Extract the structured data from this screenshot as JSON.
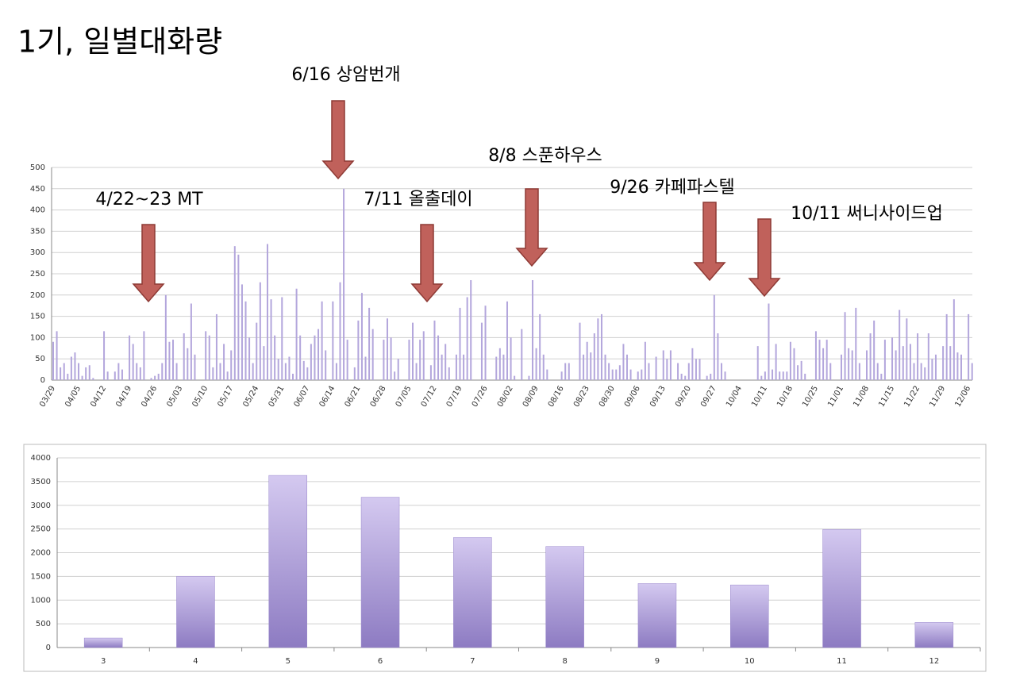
{
  "chart_data": [
    {
      "type": "bar",
      "title": "1기, 일별대화량",
      "color": "#b3a6dc",
      "categories": [
        "03/29",
        null,
        null,
        null,
        null,
        null,
        null,
        "04/05",
        null,
        null,
        null,
        null,
        null,
        null,
        "04/12",
        null,
        null,
        null,
        null,
        null,
        null,
        "04/19",
        null,
        null,
        null,
        null,
        null,
        null,
        "04/26",
        null,
        null,
        null,
        null,
        null,
        null,
        "05/03",
        null,
        null,
        null,
        null,
        null,
        null,
        "05/10",
        null,
        null,
        null,
        null,
        null,
        null,
        "05/17",
        null,
        null,
        null,
        null,
        null,
        null,
        "05/24",
        null,
        null,
        null,
        null,
        null,
        null,
        "05/31",
        null,
        null,
        null,
        null,
        null,
        null,
        "06/07",
        null,
        null,
        null,
        null,
        null,
        null,
        "06/14",
        null,
        null,
        null,
        null,
        null,
        null,
        "06/21",
        null,
        null,
        null,
        null,
        null,
        null,
        "06/28",
        null,
        null,
        null,
        null,
        null,
        null,
        "07/05",
        null,
        null,
        null,
        null,
        null,
        null,
        "07/12",
        null,
        null,
        null,
        null,
        null,
        null,
        "07/19",
        null,
        null,
        null,
        null,
        null,
        null,
        "07/26",
        null,
        null,
        null,
        null,
        null,
        null,
        "08/02",
        null,
        null,
        null,
        null,
        null,
        null,
        "08/09",
        null,
        null,
        null,
        null,
        null,
        null,
        "08/16",
        null,
        null,
        null,
        null,
        null,
        null,
        "08/23",
        null,
        null,
        null,
        null,
        null,
        null,
        "08/30",
        null,
        null,
        null,
        null,
        null,
        null,
        "09/06",
        null,
        null,
        null,
        null,
        null,
        null,
        "09/13",
        null,
        null,
        null,
        null,
        null,
        null,
        "09/20",
        null,
        null,
        null,
        null,
        null,
        null,
        "09/27",
        null,
        null,
        null,
        null,
        null,
        null,
        "10/04",
        null,
        null,
        null,
        null,
        null,
        null,
        "10/11",
        null,
        null,
        null,
        null,
        null,
        null,
        "10/18",
        null,
        null,
        null,
        null,
        null,
        null,
        "10/25",
        null,
        null,
        null,
        null,
        null,
        null,
        "11/01",
        null,
        null,
        null,
        null,
        null,
        null,
        "11/08",
        null,
        null,
        null,
        null,
        null,
        null,
        "11/15",
        null,
        null,
        null,
        null,
        null,
        null,
        "11/22",
        null,
        null,
        null,
        null,
        null,
        null,
        "11/29",
        null,
        null,
        null,
        null,
        null,
        null,
        "12/06",
        null
      ],
      "values": [
        90,
        115,
        30,
        40,
        15,
        55,
        65,
        40,
        10,
        30,
        35,
        5,
        0,
        0,
        115,
        20,
        0,
        20,
        40,
        25,
        0,
        105,
        85,
        40,
        30,
        115,
        0,
        5,
        10,
        15,
        40,
        200,
        90,
        95,
        40,
        0,
        110,
        75,
        180,
        60,
        0,
        0,
        115,
        105,
        30,
        155,
        40,
        85,
        20,
        70,
        315,
        295,
        225,
        185,
        100,
        40,
        135,
        230,
        80,
        320,
        190,
        105,
        50,
        195,
        40,
        55,
        15,
        215,
        105,
        45,
        30,
        85,
        105,
        120,
        185,
        70,
        0,
        185,
        40,
        230,
        450,
        95,
        0,
        30,
        140,
        205,
        55,
        170,
        120,
        0,
        0,
        95,
        145,
        100,
        20,
        50,
        0,
        0,
        95,
        135,
        40,
        95,
        115,
        0,
        35,
        140,
        105,
        60,
        85,
        30,
        0,
        60,
        170,
        60,
        195,
        235,
        0,
        0,
        135,
        175,
        0,
        0,
        55,
        75,
        60,
        185,
        100,
        10,
        0,
        120,
        0,
        10,
        235,
        75,
        155,
        60,
        25,
        0,
        0,
        0,
        20,
        40,
        40,
        0,
        0,
        135,
        60,
        90,
        65,
        110,
        145,
        155,
        60,
        40,
        25,
        25,
        35,
        85,
        60,
        25,
        0,
        20,
        25,
        90,
        40,
        0,
        55,
        0,
        70,
        50,
        70,
        0,
        40,
        15,
        10,
        40,
        75,
        50,
        50,
        0,
        10,
        15,
        200,
        110,
        40,
        20,
        0,
        0,
        0,
        0,
        0,
        0,
        0,
        0,
        80,
        10,
        20,
        180,
        25,
        85,
        20,
        20,
        20,
        90,
        75,
        35,
        45,
        15,
        0,
        0,
        115,
        95,
        75,
        95,
        40,
        0,
        0,
        60,
        160,
        75,
        70,
        170,
        40,
        0,
        70,
        110,
        140,
        40,
        15,
        95,
        0,
        100,
        70,
        165,
        80,
        145,
        85,
        40,
        110,
        40,
        30,
        110,
        50,
        60,
        0,
        80,
        155,
        80,
        190,
        65,
        60,
        0,
        155,
        40
      ],
      "ylim": [
        0,
        500
      ],
      "yticks": [
        0,
        50,
        100,
        150,
        200,
        250,
        300,
        350,
        400,
        450,
        500
      ],
      "grid": true,
      "annotations": [
        "4/22~23 MT",
        "6/16 상암번개",
        "7/11 올출데이",
        "8/8 스푼하우스",
        "9/26 카페파스텔",
        "10/11 써니사이드업"
      ]
    },
    {
      "type": "bar",
      "color": "#9a88cc",
      "categories": [
        "3",
        "4",
        "5",
        "6",
        "7",
        "8",
        "9",
        "10",
        "11",
        "12"
      ],
      "values": [
        200,
        1500,
        3630,
        3170,
        2320,
        2130,
        1350,
        1320,
        2490,
        530
      ],
      "ylim": [
        0,
        4000
      ],
      "yticks": [
        0,
        500,
        1000,
        1500,
        2000,
        2500,
        3000,
        3500,
        4000
      ],
      "grid": true
    }
  ]
}
